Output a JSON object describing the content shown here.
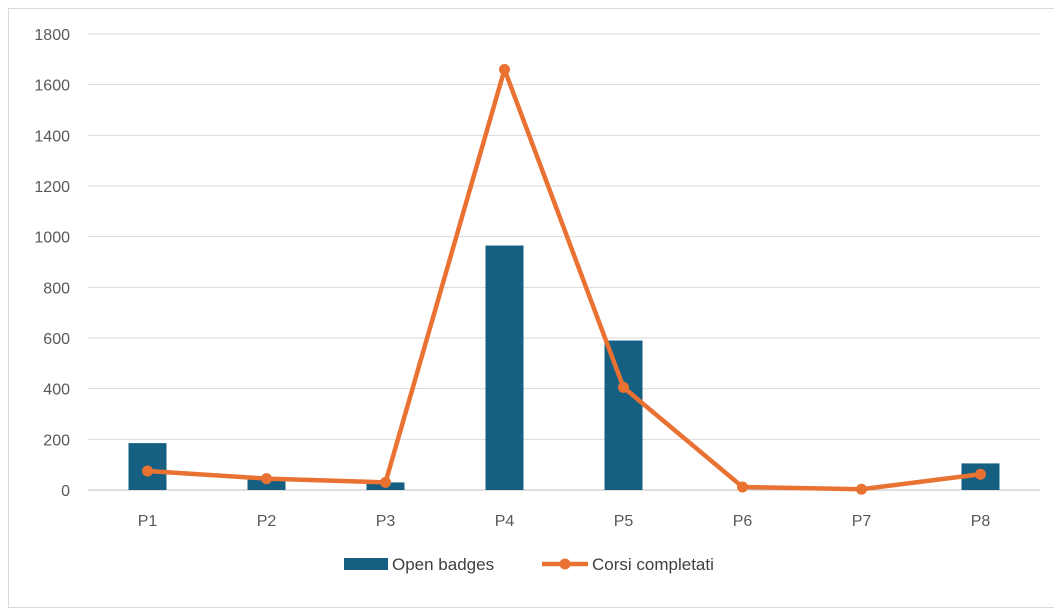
{
  "chart_data": {
    "type": "bar",
    "categories": [
      "P1",
      "P2",
      "P3",
      "P4",
      "P5",
      "P6",
      "P7",
      "P8"
    ],
    "series": [
      {
        "name": "Open badges",
        "type": "bar",
        "color": "#156082",
        "values": [
          185,
          45,
          30,
          965,
          590,
          0,
          0,
          105
        ]
      },
      {
        "name": "Corsi completati",
        "type": "line",
        "color": "#E97132",
        "values": [
          75,
          45,
          30,
          1660,
          405,
          12,
          3,
          62
        ]
      }
    ],
    "ylim": [
      0,
      1800
    ],
    "yticks": [
      "0",
      "200",
      "400",
      "600",
      "800",
      "1000",
      "1200",
      "1400",
      "1600",
      "1800"
    ],
    "grid": true,
    "legend_position": "bottom",
    "colors": {
      "gridline": "#d9d9d9",
      "axis": "#bfbfbf",
      "tick_text": "#595959"
    }
  }
}
